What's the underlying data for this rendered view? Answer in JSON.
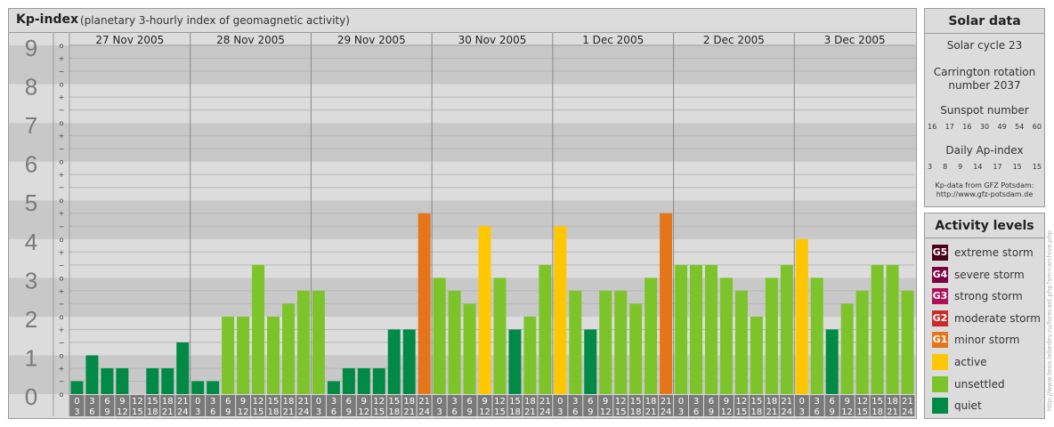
{
  "header": {
    "title": "Kp-index",
    "subtitle": "(planetary 3-hourly index of geomagnetic activity)"
  },
  "colors": {
    "quiet": "#008a45",
    "unsettled": "#7cc42a",
    "active": "#ffc700",
    "minor_storm": "#e6751a",
    "moderate_storm": "#cc2a2a",
    "strong_storm": "#b00e58",
    "severe_storm": "#7a0042",
    "extreme_storm": "#4a0019"
  },
  "chart_data": {
    "type": "bar",
    "ylim": [
      0,
      9
    ],
    "y_ticks": [
      "0",
      "1",
      "2",
      "3",
      "4",
      "5",
      "6",
      "7",
      "8",
      "9"
    ],
    "sub_ticks": [
      "+",
      "o",
      "−"
    ],
    "days": [
      "27 Nov 2005",
      "28 Nov 2005",
      "29 Nov 2005",
      "30 Nov 2005",
      "1 Dec 2005",
      "2 Dec 2005",
      "3 Dec 2005"
    ],
    "hour_starts": [
      "0",
      "3",
      "6",
      "9",
      "12",
      "15",
      "18",
      "21"
    ],
    "hour_ends": [
      "3",
      "6",
      "9",
      "12",
      "15",
      "18",
      "21",
      "24"
    ],
    "values": [
      [
        0.333,
        1.0,
        0.667,
        0.667,
        0.0,
        0.667,
        0.667,
        1.333
      ],
      [
        0.333,
        0.333,
        2.0,
        2.0,
        3.333,
        2.0,
        2.333,
        2.667
      ],
      [
        2.667,
        0.333,
        0.667,
        0.667,
        0.667,
        1.667,
        1.667,
        4.667
      ],
      [
        3.0,
        2.667,
        2.333,
        4.333,
        3.0,
        1.667,
        2.0,
        3.333
      ],
      [
        4.333,
        2.667,
        1.667,
        2.667,
        2.667,
        2.333,
        3.0,
        4.667
      ],
      [
        3.333,
        3.333,
        3.333,
        3.0,
        2.667,
        2.0,
        3.0,
        3.333
      ],
      [
        4.0,
        3.0,
        1.667,
        2.333,
        2.667,
        3.333,
        3.333,
        2.667
      ]
    ]
  },
  "solar": {
    "title": "Solar data",
    "cycle": "Solar cycle 23",
    "carrington_line1": "Carrington rotation",
    "carrington_line2": "number 2037",
    "sunspot_title": "Sunspot number",
    "sunspot_values": [
      "16",
      "17",
      "16",
      "30",
      "49",
      "54",
      "60"
    ],
    "ap_title": "Daily Ap-index",
    "ap_values": [
      "3",
      "8",
      "9",
      "14",
      "17",
      "15",
      "15"
    ],
    "source_line1": "Kp-data from GFZ Potsdam:",
    "source_line2": "http://www.gfz-potsdam.de"
  },
  "levels": {
    "title": "Activity levels",
    "items": [
      {
        "badge": "G5",
        "label": "extreme storm",
        "color": "#4a0019"
      },
      {
        "badge": "G4",
        "label": "severe storm",
        "color": "#7a0042"
      },
      {
        "badge": "G3",
        "label": "strong storm",
        "color": "#b00e58"
      },
      {
        "badge": "G2",
        "label": "moderate storm",
        "color": "#cc2a2a"
      },
      {
        "badge": "G1",
        "label": "minor storm",
        "color": "#e6751a"
      },
      {
        "badge": "",
        "label": "active",
        "color": "#ffc700"
      },
      {
        "badge": "",
        "label": "unsettled",
        "color": "#7cc42a"
      },
      {
        "badge": "",
        "label": "quiet",
        "color": "#008a45"
      }
    ]
  },
  "watermark": "http://www.tesis.lebedev.ru/forecast.php?sm=archive.php"
}
